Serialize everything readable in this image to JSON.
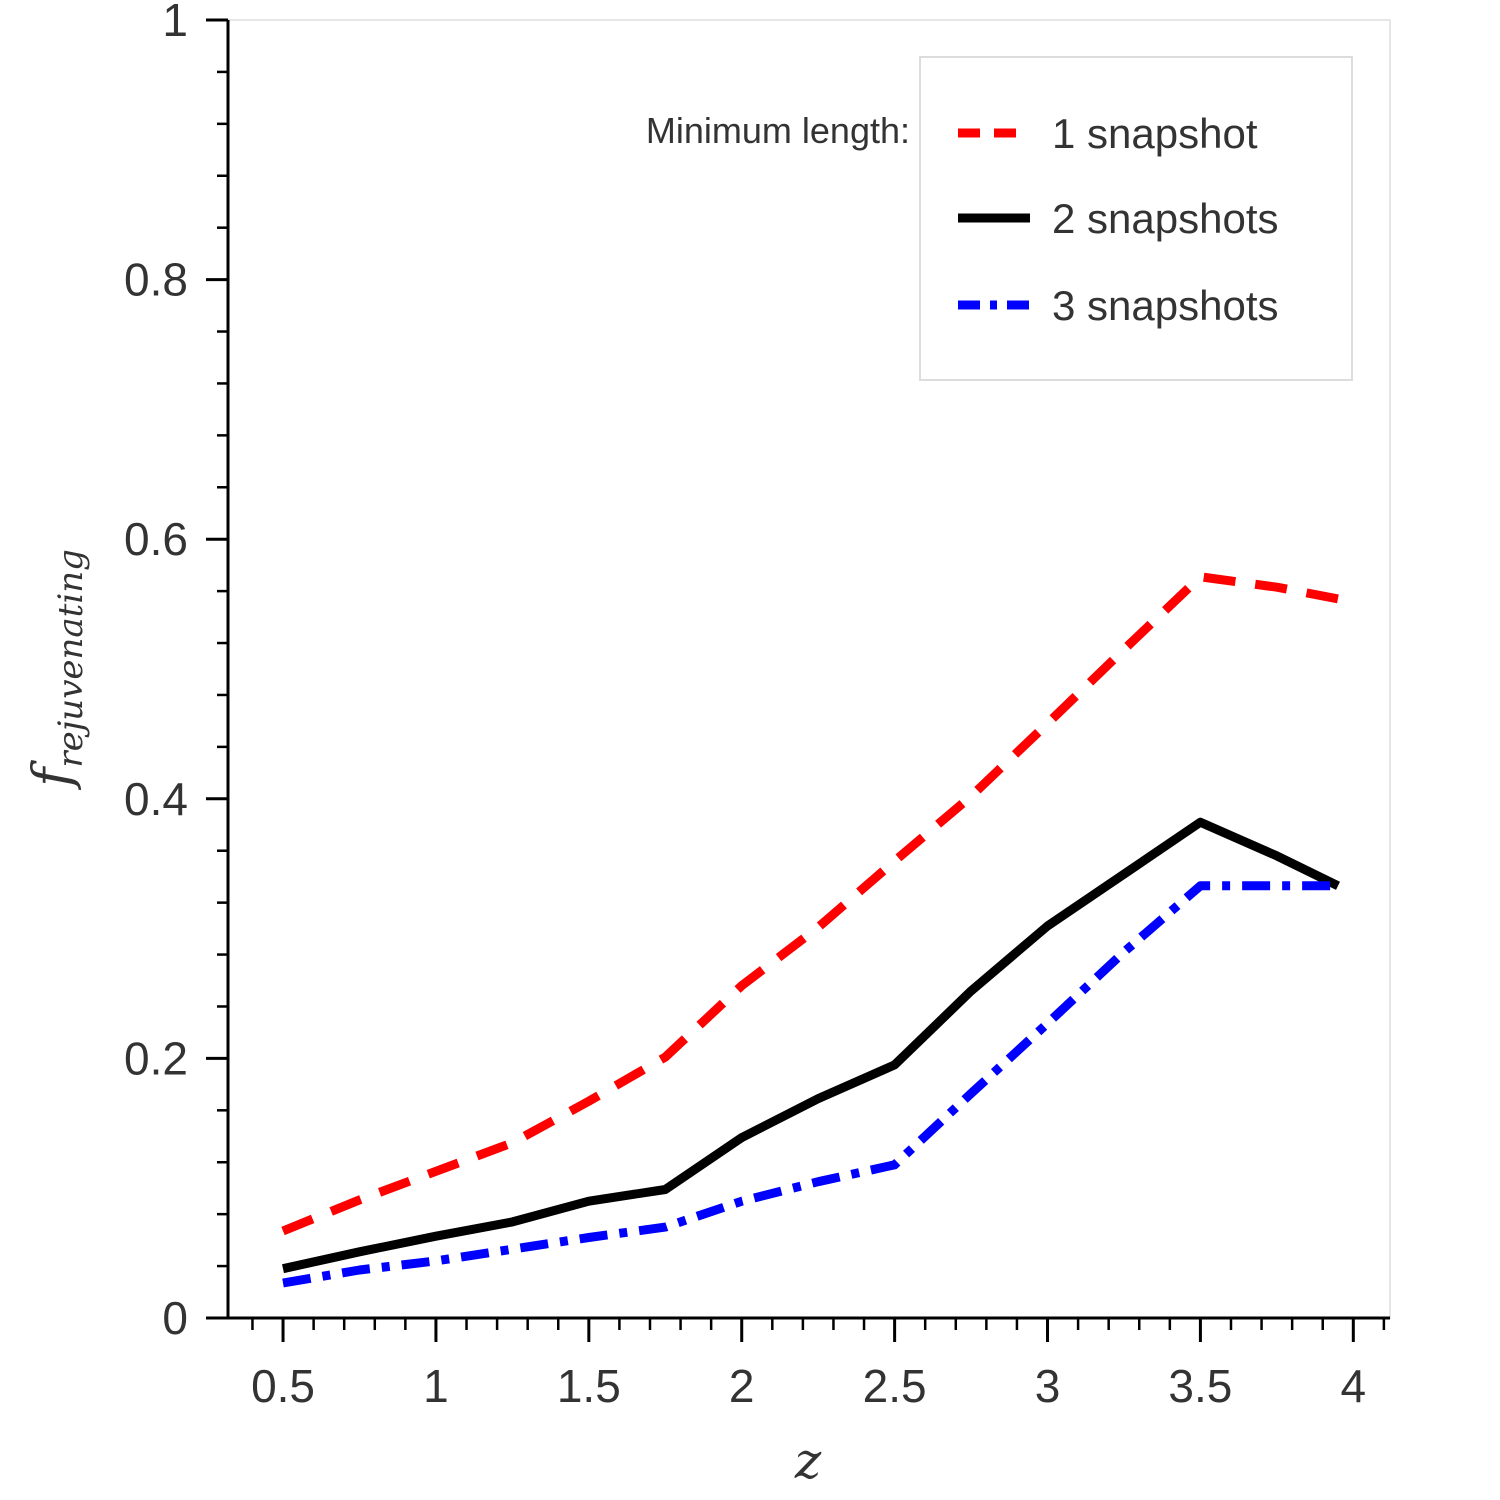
{
  "chart_data": {
    "type": "line",
    "xlabel": "z",
    "ylabel": "f",
    "ylabel_subscript": "rejuvenating",
    "xlim": [
      0.32,
      4.12
    ],
    "ylim": [
      0,
      1
    ],
    "xticks": [
      0.5,
      1,
      1.5,
      2,
      2.5,
      3,
      3.5,
      4
    ],
    "xtick_labels": [
      "0.5",
      "1",
      "1.5",
      "2",
      "2.5",
      "3",
      "3.5",
      "4"
    ],
    "yticks": [
      0,
      0.2,
      0.4,
      0.6,
      0.8,
      1
    ],
    "ytick_labels": [
      "0",
      "0.2",
      "0.4",
      "0.6",
      "0.8",
      "1"
    ],
    "legend_title": "Minimum length:",
    "legend_position": "top-right",
    "x": [
      0.5,
      0.75,
      1.0,
      1.25,
      1.5,
      1.75,
      2.0,
      2.25,
      2.5,
      2.75,
      3.0,
      3.25,
      3.5,
      3.75,
      3.95
    ],
    "series": [
      {
        "name": "1 snapshot",
        "color": "#ff0000",
        "style": "dashed",
        "values": [
          0.067,
          0.091,
          0.113,
          0.135,
          0.167,
          0.201,
          0.256,
          0.301,
          0.352,
          0.402,
          0.458,
          0.515,
          0.571,
          0.563,
          0.554
        ]
      },
      {
        "name": "2 snapshots",
        "color": "#000000",
        "style": "solid",
        "values": [
          0.038,
          0.051,
          0.063,
          0.074,
          0.09,
          0.099,
          0.139,
          0.169,
          0.195,
          0.252,
          0.302,
          0.342,
          0.382,
          0.356,
          0.333
        ]
      },
      {
        "name": "3 snapshots",
        "color": "#0000ff",
        "style": "dashdot",
        "values": [
          0.027,
          0.037,
          0.044,
          0.053,
          0.062,
          0.07,
          0.09,
          0.105,
          0.118,
          0.173,
          0.227,
          0.282,
          0.333,
          0.333,
          0.333
        ]
      }
    ]
  }
}
